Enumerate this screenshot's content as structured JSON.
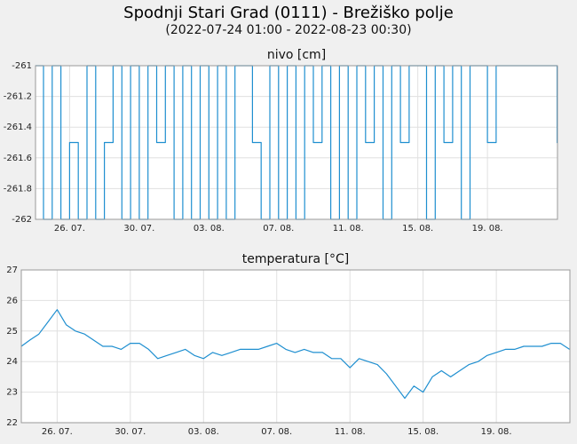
{
  "header": {
    "title": "Spodnji Stari Grad  (0111) - Brežiško polje",
    "subtitle": "(2022-07-24 01:00 - 2022-08-23 00:30)"
  },
  "colors": {
    "line": "#1f8fd0",
    "grid": "#e0e0e0",
    "plot_background": "#ffffff",
    "page_background": "#f0f0f0"
  },
  "chart_data": [
    {
      "type": "line",
      "title": "nivo [cm]",
      "ylim": [
        -262,
        -261
      ],
      "yticks": [
        -262,
        -261.8,
        -261.6,
        -261.4,
        -261.2,
        -261
      ],
      "ytick_labels": [
        "-262",
        "-261.8",
        "-261.6",
        "-261.4",
        "-261.2",
        "-261"
      ],
      "xlim": [
        "2022-07-24 01:00",
        "2022-08-23 00:30"
      ],
      "xticks": [
        "2022-07-26",
        "2022-07-30",
        "2022-08-03",
        "2022-08-07",
        "2022-08-11",
        "2022-08-15",
        "2022-08-19"
      ],
      "xtick_labels": [
        "26. 07.",
        "30. 07.",
        "03. 08.",
        "07. 08.",
        "11. 08.",
        "15. 08.",
        "19. 08."
      ],
      "grid": true,
      "series": [
        {
          "x": [
            "2022-07-24 01:00",
            "2022-07-24 12:00",
            "2022-07-25 00:00",
            "2022-07-25 12:00",
            "2022-07-26 00:00",
            "2022-07-26 12:00",
            "2022-07-27 00:00",
            "2022-07-27 12:00",
            "2022-07-28 00:00",
            "2022-07-28 12:00",
            "2022-07-29 00:00",
            "2022-07-29 12:00",
            "2022-07-30 00:00",
            "2022-07-30 12:00",
            "2022-07-31 00:00",
            "2022-07-31 12:00",
            "2022-08-01 00:00",
            "2022-08-01 12:00",
            "2022-08-02 00:00",
            "2022-08-02 12:00",
            "2022-08-03 00:00",
            "2022-08-03 12:00",
            "2022-08-04 00:00",
            "2022-08-04 12:00",
            "2022-08-05 00:00",
            "2022-08-05 12:00",
            "2022-08-06 00:00",
            "2022-08-06 12:00",
            "2022-08-07 00:00",
            "2022-08-07 12:00",
            "2022-08-08 00:00",
            "2022-08-08 12:00",
            "2022-08-09 00:00",
            "2022-08-09 12:00",
            "2022-08-10 00:00",
            "2022-08-10 12:00",
            "2022-08-11 00:00",
            "2022-08-11 12:00",
            "2022-08-12 00:00",
            "2022-08-12 12:00",
            "2022-08-13 00:00",
            "2022-08-13 12:00",
            "2022-08-14 00:00",
            "2022-08-14 12:00",
            "2022-08-15 00:00",
            "2022-08-15 12:00",
            "2022-08-16 00:00",
            "2022-08-16 12:00",
            "2022-08-17 00:00",
            "2022-08-17 12:00",
            "2022-08-18 00:00",
            "2022-08-18 12:00",
            "2022-08-19 00:00",
            "2022-08-19 12:00",
            "2022-08-20 00:00",
            "2022-08-20 12:00",
            "2022-08-21 00:00",
            "2022-08-21 12:00",
            "2022-08-22 00:00",
            "2022-08-22 12:00",
            "2022-08-23 00:00"
          ],
          "y": [
            -261,
            -262,
            -261,
            -262,
            -261.5,
            -262,
            -261,
            -262,
            -261.5,
            -261,
            -262,
            -261,
            -262,
            -261,
            -261.5,
            -261,
            -262,
            -261,
            -262,
            -261,
            -262,
            -261,
            -262,
            -261,
            -261,
            -261.5,
            -262,
            -261,
            -262,
            -261,
            -262,
            -261,
            -261.5,
            -261,
            -262,
            -261,
            -262,
            -261,
            -261.5,
            -261,
            -262,
            -261,
            -261.5,
            -261,
            -261,
            -262,
            -261,
            -261.5,
            -261,
            -262,
            -261,
            -261,
            -261.5,
            -261,
            -261,
            -261,
            -261,
            -261,
            -261,
            -261,
            -261.5
          ]
        }
      ]
    },
    {
      "type": "line",
      "title": "temperatura [°C]",
      "ylim": [
        22,
        27
      ],
      "yticks": [
        22,
        23,
        24,
        25,
        26,
        27
      ],
      "ytick_labels": [
        "22",
        "23",
        "24",
        "25",
        "26",
        "27"
      ],
      "xlim": [
        "2022-07-24 01:00",
        "2022-08-23 00:30"
      ],
      "xticks": [
        "2022-07-26",
        "2022-07-30",
        "2022-08-03",
        "2022-08-07",
        "2022-08-11",
        "2022-08-15",
        "2022-08-19"
      ],
      "xtick_labels": [
        "26. 07.",
        "30. 07.",
        "03. 08.",
        "07. 08.",
        "11. 08.",
        "15. 08.",
        "19. 08."
      ],
      "grid": true,
      "series": [
        {
          "x": [
            "2022-07-24 01:00",
            "2022-07-24 12:00",
            "2022-07-25 00:00",
            "2022-07-25 12:00",
            "2022-07-26 00:00",
            "2022-07-26 12:00",
            "2022-07-27 00:00",
            "2022-07-27 12:00",
            "2022-07-28 00:00",
            "2022-07-28 12:00",
            "2022-07-29 00:00",
            "2022-07-29 12:00",
            "2022-07-30 00:00",
            "2022-07-30 12:00",
            "2022-07-31 00:00",
            "2022-07-31 12:00",
            "2022-08-01 00:00",
            "2022-08-01 12:00",
            "2022-08-02 00:00",
            "2022-08-02 12:00",
            "2022-08-03 00:00",
            "2022-08-03 12:00",
            "2022-08-04 00:00",
            "2022-08-04 12:00",
            "2022-08-05 00:00",
            "2022-08-05 12:00",
            "2022-08-06 00:00",
            "2022-08-06 12:00",
            "2022-08-07 00:00",
            "2022-08-07 12:00",
            "2022-08-08 00:00",
            "2022-08-08 12:00",
            "2022-08-09 00:00",
            "2022-08-09 12:00",
            "2022-08-10 00:00",
            "2022-08-10 12:00",
            "2022-08-11 00:00",
            "2022-08-11 12:00",
            "2022-08-12 00:00",
            "2022-08-12 12:00",
            "2022-08-13 00:00",
            "2022-08-13 12:00",
            "2022-08-14 00:00",
            "2022-08-14 12:00",
            "2022-08-15 00:00",
            "2022-08-15 12:00",
            "2022-08-16 00:00",
            "2022-08-16 12:00",
            "2022-08-17 00:00",
            "2022-08-17 12:00",
            "2022-08-18 00:00",
            "2022-08-18 12:00",
            "2022-08-19 00:00",
            "2022-08-19 12:00",
            "2022-08-20 00:00",
            "2022-08-20 12:00",
            "2022-08-21 00:00",
            "2022-08-21 12:00",
            "2022-08-22 00:00",
            "2022-08-22 12:00",
            "2022-08-23 00:00"
          ],
          "y": [
            24.5,
            24.7,
            24.9,
            25.3,
            25.7,
            25.2,
            25.0,
            24.9,
            24.7,
            24.5,
            24.5,
            24.4,
            24.6,
            24.6,
            24.4,
            24.1,
            24.2,
            24.3,
            24.4,
            24.2,
            24.1,
            24.3,
            24.2,
            24.3,
            24.4,
            24.4,
            24.4,
            24.5,
            24.6,
            24.4,
            24.3,
            24.4,
            24.3,
            24.3,
            24.1,
            24.1,
            23.8,
            24.1,
            24.0,
            23.9,
            23.6,
            23.2,
            22.8,
            23.2,
            23.0,
            23.5,
            23.7,
            23.5,
            23.7,
            23.9,
            24.0,
            24.2,
            24.3,
            24.4,
            24.4,
            24.5,
            24.5,
            24.5,
            24.6,
            24.6,
            24.4
          ]
        }
      ]
    }
  ]
}
